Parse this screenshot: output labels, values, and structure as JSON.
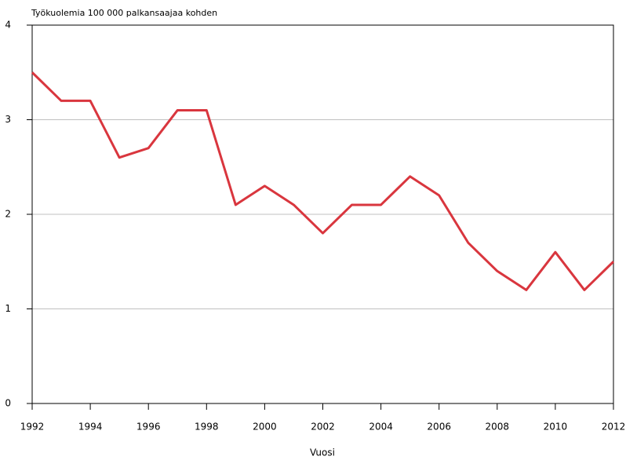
{
  "chart_data": {
    "type": "line",
    "title": "Työkuolemia 100 000 palkansaajaa kohden",
    "x_label": "Vuosi",
    "x": [
      1992,
      1993,
      1994,
      1995,
      1996,
      1997,
      1998,
      1999,
      2000,
      2001,
      2002,
      2003,
      2004,
      2005,
      2006,
      2007,
      2008,
      2009,
      2010,
      2011,
      2012
    ],
    "series": [
      {
        "color": "#d9363e",
        "values": [
          3.5,
          3.2,
          3.2,
          2.6,
          2.7,
          3.1,
          3.1,
          2.1,
          2.3,
          2.1,
          1.8,
          2.1,
          2.1,
          2.4,
          2.2,
          1.7,
          1.4,
          1.2,
          1.6,
          1.2,
          1.5
        ]
      }
    ],
    "xlim": [
      1992,
      2012
    ],
    "xticks": [
      1992,
      1994,
      1996,
      1998,
      2000,
      2002,
      2004,
      2006,
      2008,
      2010,
      2012
    ],
    "ylim": [
      0,
      4
    ],
    "yticks": [
      0,
      1,
      2,
      3,
      4
    ],
    "grid": true
  }
}
